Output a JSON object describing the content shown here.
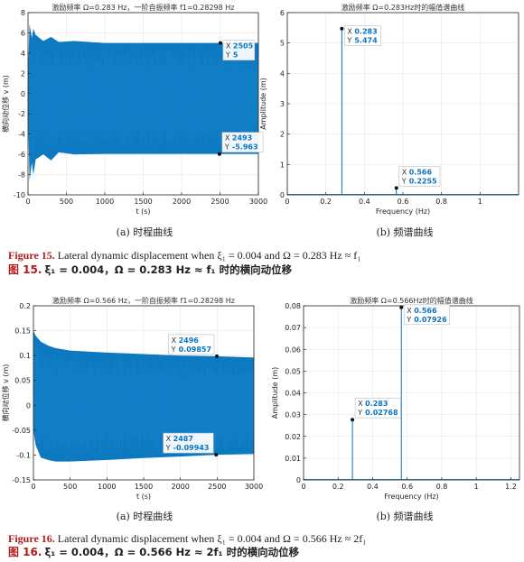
{
  "colors": {
    "series": "#0072bd",
    "axis": "#262626",
    "grid": "#e6e6e6",
    "marker": "#111111",
    "datatip_value": "#0a74c4"
  },
  "figures": [
    {
      "time_chart": {
        "type": "area",
        "title": "激励频率 Ω=0.283 Hz，一阶自振频率 f1=0.28298 Hz",
        "xlabel": "t (s)",
        "ylabel": "横向动位移 v (m)",
        "xlim": [
          0,
          3000
        ],
        "ylim": [
          -10,
          8
        ],
        "xticks": [
          0,
          500,
          1000,
          1500,
          2000,
          2500,
          3000
        ],
        "yticks": [
          -10,
          -8,
          -6,
          -4,
          -2,
          0,
          2,
          4,
          6,
          8
        ],
        "grid": true,
        "envelope": {
          "t": [
            0,
            20,
            50,
            70,
            100,
            200,
            300,
            400,
            600,
            1000,
            2000,
            3000
          ],
          "upper": [
            2.0,
            6.9,
            5.5,
            6.4,
            5.8,
            5.2,
            5.6,
            5.1,
            5.2,
            5.0,
            5.0,
            5.0
          ],
          "lower": [
            -2.0,
            -8.6,
            -6.8,
            -8.0,
            -6.5,
            -6.0,
            -6.6,
            -5.8,
            -6.0,
            -5.96,
            -5.96,
            -5.96
          ]
        },
        "datatips": [
          {
            "x": 2505,
            "y": 5,
            "x_text": "2505",
            "y_text": "5",
            "placement": "right-below"
          },
          {
            "x": 2493,
            "y": -5.963,
            "x_text": "2493",
            "y_text": "-5.963",
            "placement": "right-above"
          }
        ],
        "subcaption": "(a) 时程曲线"
      },
      "spectrum_chart": {
        "type": "line",
        "title": "激励频率 Ω=0.283Hz时的幅值谱曲线",
        "xlabel": "Frequency (Hz)",
        "ylabel": "Amplitude (m)",
        "xlim": [
          0,
          1.2
        ],
        "ylim": [
          0,
          6
        ],
        "xticks": [
          0,
          0.2,
          0.4,
          0.6,
          0.8,
          1
        ],
        "yticks": [
          0,
          1,
          2,
          3,
          4,
          5,
          6
        ],
        "grid": true,
        "peaks": [
          {
            "x": 0.283,
            "y": 5.474
          },
          {
            "x": 0.566,
            "y": 0.2255
          }
        ],
        "datatips": [
          {
            "x": 0.283,
            "y": 5.474,
            "x_text": "0.283",
            "y_text": "5.474",
            "placement": "right-below"
          },
          {
            "x": 0.566,
            "y": 0.2255,
            "x_text": "0.566",
            "y_text": "0.2255",
            "placement": "right-above"
          }
        ],
        "subcaption": "(b) 频谱曲线"
      },
      "caption_en_label": "Figure 15.",
      "caption_en_text": "Lateral dynamic displacement when ξ₁ = 0.004 and Ω = 0.283 Hz ≈ f₁",
      "caption_cn_label": "图 15.",
      "caption_cn_text": "ξ₁ = 0.004，Ω = 0.283 Hz ≈ f₁ 时的横向动位移"
    },
    {
      "time_chart": {
        "type": "area",
        "title": "激励频率 Ω=0.566 Hz，一阶自振频率 f1=0.28298 Hz",
        "xlabel": "t (s)",
        "ylabel": "横向动位移 v (m)",
        "xlim": [
          0,
          3000
        ],
        "ylim": [
          -0.15,
          0.2
        ],
        "xticks": [
          0,
          500,
          1000,
          1500,
          2000,
          2500,
          3000
        ],
        "yticks": [
          -0.15,
          -0.1,
          -0.05,
          0,
          0.05,
          0.1,
          0.15,
          0.2
        ],
        "grid": true,
        "envelope": {
          "t": [
            0,
            30,
            100,
            200,
            300,
            500,
            1000,
            1500,
            2000,
            2500,
            3000
          ],
          "upper": [
            0.15,
            0.14,
            0.128,
            0.12,
            0.115,
            0.11,
            0.106,
            0.103,
            0.1,
            0.0986,
            0.096
          ],
          "lower": [
            -0.05,
            -0.08,
            -0.105,
            -0.11,
            -0.113,
            -0.113,
            -0.11,
            -0.106,
            -0.103,
            -0.0994,
            -0.098
          ]
        },
        "datatips": [
          {
            "x": 2496,
            "y": 0.09857,
            "x_text": "2496",
            "y_text": "0.09857",
            "placement": "left-above"
          },
          {
            "x": 2487,
            "y": -0.09943,
            "x_text": "2487",
            "y_text": "-0.09943",
            "placement": "left-above"
          }
        ],
        "subcaption": "(a) 时程曲线"
      },
      "spectrum_chart": {
        "type": "line",
        "title": "激励频率 Ω=0.566Hz时的幅值谱曲线",
        "xlabel": "Frequency (Hz)",
        "ylabel": "Amplitude (m)",
        "xlim": [
          0,
          1.25
        ],
        "ylim": [
          0,
          0.08
        ],
        "xticks": [
          0,
          0.2,
          0.4,
          0.6,
          0.8,
          1,
          1.2
        ],
        "yticks": [
          0,
          0.01,
          0.02,
          0.03,
          0.04,
          0.05,
          0.06,
          0.07,
          0.08
        ],
        "grid": true,
        "peaks": [
          {
            "x": 0.283,
            "y": 0.02768
          },
          {
            "x": 0.566,
            "y": 0.07926
          }
        ],
        "datatips": [
          {
            "x": 0.283,
            "y": 0.02768,
            "x_text": "0.283",
            "y_text": "0.02768",
            "placement": "right-above"
          },
          {
            "x": 0.566,
            "y": 0.07926,
            "x_text": "0.566",
            "y_text": "0.07926",
            "placement": "right-below"
          }
        ],
        "subcaption": "(b) 频谱曲线"
      },
      "caption_en_label": "Figure 16.",
      "caption_en_text": "Lateral dynamic displacement when ξ₁ = 0.004 and Ω = 0.566 Hz ≈ 2f₁",
      "caption_cn_label": "图 16.",
      "caption_cn_text": "ξ₁ = 0.004，Ω = 0.566 Hz ≈ 2f₁ 时的横向动位移"
    }
  ]
}
